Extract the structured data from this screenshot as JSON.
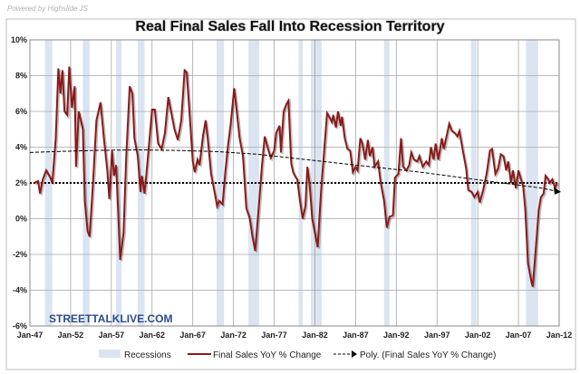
{
  "powered_by": "Powered by  Highslide JS",
  "watermark": "STREETTALKLIVE.COM",
  "colors": {
    "series": "#8b1a1a",
    "recession": "#dbe5f1",
    "trend": "#000000",
    "watermark": "#2b4c8c"
  },
  "chart_data": {
    "type": "line",
    "title": "Real Final Sales Fall Into Recession Territory",
    "xlabel": "",
    "ylabel": "",
    "ylim": [
      -6,
      10
    ],
    "xlim": [
      "1947-01",
      "2012-01"
    ],
    "grid": true,
    "legend_placement": "bottom",
    "y_ticks": [
      "10%",
      "8%",
      "6%",
      "4%",
      "2%",
      "0%",
      "-2%",
      "-4%",
      "-6%"
    ],
    "x_ticks": [
      "Jan-47",
      "Jan-52",
      "Jan-57",
      "Jan-62",
      "Jan-67",
      "Jan-72",
      "Jan-77",
      "Jan-82",
      "Jan-87",
      "Jan-92",
      "Jan-97",
      "Jan-02",
      "Jan-07",
      "Jan-12"
    ],
    "legend": [
      "Recessions",
      "Final Sales YoY % Change",
      "Poly. (Final Sales YoY % Change)"
    ],
    "reference_line": 2,
    "recessions": [
      [
        "1948-11",
        "1949-10"
      ],
      [
        "1953-07",
        "1954-05"
      ],
      [
        "1957-08",
        "1958-04"
      ],
      [
        "1960-04",
        "1961-02"
      ],
      [
        "1969-12",
        "1970-11"
      ],
      [
        "1973-11",
        "1975-03"
      ],
      [
        "1980-01",
        "1980-07"
      ],
      [
        "1981-07",
        "1982-11"
      ],
      [
        "1990-07",
        "1991-03"
      ],
      [
        "2001-03",
        "2001-11"
      ],
      [
        "2007-12",
        "2009-06"
      ]
    ],
    "series": [
      {
        "name": "Final Sales YoY % Change",
        "values": [
          [
            "1947-07",
            2.0
          ],
          [
            "1948-01",
            2.1
          ],
          [
            "1948-04",
            1.4
          ],
          [
            "1948-08",
            2.2
          ],
          [
            "1949-01",
            2.7
          ],
          [
            "1949-07",
            2.3
          ],
          [
            "1949-10",
            2.0
          ],
          [
            "1950-03",
            4.5
          ],
          [
            "1950-07",
            8.4
          ],
          [
            "1950-10",
            7.0
          ],
          [
            "1951-01",
            8.3
          ],
          [
            "1951-04",
            6.0
          ],
          [
            "1951-08",
            5.8
          ],
          [
            "1951-11",
            8.5
          ],
          [
            "1952-03",
            6.2
          ],
          [
            "1952-07",
            7.4
          ],
          [
            "1952-09",
            2.9
          ],
          [
            "1953-01",
            6.0
          ],
          [
            "1953-04",
            5.5
          ],
          [
            "1953-07",
            5.0
          ],
          [
            "1953-10",
            1.0
          ],
          [
            "1954-02",
            -0.7
          ],
          [
            "1954-05",
            -1.0
          ],
          [
            "1954-10",
            2.0
          ],
          [
            "1955-03",
            5.5
          ],
          [
            "1955-09",
            6.5
          ],
          [
            "1956-02",
            4.5
          ],
          [
            "1956-07",
            2.7
          ],
          [
            "1956-10",
            1.1
          ],
          [
            "1957-02",
            3.8
          ],
          [
            "1957-05",
            2.4
          ],
          [
            "1957-08",
            3.0
          ],
          [
            "1957-11",
            0.5
          ],
          [
            "1958-02",
            -2.3
          ],
          [
            "1958-07",
            -0.8
          ],
          [
            "1958-11",
            3.5
          ],
          [
            "1959-04",
            7.4
          ],
          [
            "1959-08",
            7.0
          ],
          [
            "1959-11",
            4.5
          ],
          [
            "1960-04",
            3.5
          ],
          [
            "1960-08",
            1.5
          ],
          [
            "1960-10",
            2.4
          ],
          [
            "1961-02",
            1.4
          ],
          [
            "1961-07",
            3.5
          ],
          [
            "1962-01",
            6.1
          ],
          [
            "1962-05",
            6.1
          ],
          [
            "1962-10",
            4.2
          ],
          [
            "1963-03",
            3.9
          ],
          [
            "1963-08",
            4.8
          ],
          [
            "1964-01",
            6.8
          ],
          [
            "1964-05",
            6.0
          ],
          [
            "1964-10",
            5.0
          ],
          [
            "1965-03",
            4.4
          ],
          [
            "1965-08",
            5.5
          ],
          [
            "1966-01",
            8.3
          ],
          [
            "1966-04",
            8.2
          ],
          [
            "1966-09",
            5.5
          ],
          [
            "1967-01",
            3.2
          ],
          [
            "1967-04",
            2.6
          ],
          [
            "1967-08",
            3.3
          ],
          [
            "1967-11",
            3.0
          ],
          [
            "1968-04",
            4.6
          ],
          [
            "1968-08",
            5.5
          ],
          [
            "1968-11",
            4.5
          ],
          [
            "1969-04",
            2.5
          ],
          [
            "1969-09",
            1.5
          ],
          [
            "1970-01",
            0.7
          ],
          [
            "1970-04",
            1.0
          ],
          [
            "1970-09",
            0.8
          ],
          [
            "1971-01",
            2.6
          ],
          [
            "1971-05",
            4.1
          ],
          [
            "1971-09",
            5.3
          ],
          [
            "1972-02",
            7.3
          ],
          [
            "1972-05",
            6.3
          ],
          [
            "1972-10",
            4.5
          ],
          [
            "1973-03",
            3.5
          ],
          [
            "1973-08",
            0.6
          ],
          [
            "1974-01",
            0.0
          ],
          [
            "1974-05",
            -1.0
          ],
          [
            "1974-09",
            -1.8
          ],
          [
            "1975-02",
            0.5
          ],
          [
            "1975-07",
            3.0
          ],
          [
            "1975-11",
            4.6
          ],
          [
            "1976-04",
            3.9
          ],
          [
            "1976-08",
            3.4
          ],
          [
            "1977-01",
            3.8
          ],
          [
            "1977-04",
            4.8
          ],
          [
            "1977-09",
            5.2
          ],
          [
            "1977-11",
            3.7
          ],
          [
            "1978-03",
            6.0
          ],
          [
            "1978-07",
            6.4
          ],
          [
            "1978-10",
            6.6
          ],
          [
            "1979-02",
            3.1
          ],
          [
            "1979-05",
            2.6
          ],
          [
            "1979-09",
            2.3
          ],
          [
            "1979-11",
            2.2
          ],
          [
            "1980-03",
            1.0
          ],
          [
            "1980-07",
            0.0
          ],
          [
            "1980-11",
            0.7
          ],
          [
            "1981-02",
            2.9
          ],
          [
            "1981-05",
            2.0
          ],
          [
            "1981-09",
            0.0
          ],
          [
            "1982-01",
            -0.8
          ],
          [
            "1982-05",
            -1.6
          ],
          [
            "1982-10",
            1.5
          ],
          [
            "1983-02",
            3.5
          ],
          [
            "1983-07",
            5.9
          ],
          [
            "1983-10",
            5.7
          ],
          [
            "1984-02",
            5.4
          ],
          [
            "1984-04",
            5.8
          ],
          [
            "1984-08",
            5.1
          ],
          [
            "1984-11",
            6.0
          ],
          [
            "1985-03",
            5.2
          ],
          [
            "1985-05",
            5.7
          ],
          [
            "1985-09",
            4.5
          ],
          [
            "1986-01",
            3.9
          ],
          [
            "1986-05",
            3.8
          ],
          [
            "1986-09",
            2.6
          ],
          [
            "1987-01",
            2.9
          ],
          [
            "1987-04",
            2.7
          ],
          [
            "1987-08",
            4.5
          ],
          [
            "1987-11",
            4.2
          ],
          [
            "1988-03",
            3.3
          ],
          [
            "1988-07",
            4.4
          ],
          [
            "1988-10",
            3.5
          ],
          [
            "1989-02",
            4.0
          ],
          [
            "1989-05",
            2.9
          ],
          [
            "1989-10",
            3.2
          ],
          [
            "1990-02",
            2.0
          ],
          [
            "1990-07",
            1.0
          ],
          [
            "1990-11",
            -0.5
          ],
          [
            "1991-03",
            0.1
          ],
          [
            "1991-08",
            0.2
          ],
          [
            "1991-11",
            2.3
          ],
          [
            "1992-04",
            2.5
          ],
          [
            "1992-08",
            4.5
          ],
          [
            "1992-11",
            2.9
          ],
          [
            "1993-04",
            2.7
          ],
          [
            "1993-08",
            3.0
          ],
          [
            "1993-11",
            3.7
          ],
          [
            "1994-03",
            3.3
          ],
          [
            "1994-08",
            3.2
          ],
          [
            "1994-11",
            3.5
          ],
          [
            "1995-04",
            2.9
          ],
          [
            "1995-09",
            3.2
          ],
          [
            "1996-01",
            3.0
          ],
          [
            "1996-04",
            4.0
          ],
          [
            "1996-08",
            3.3
          ],
          [
            "1996-11",
            4.2
          ],
          [
            "1997-03",
            3.3
          ],
          [
            "1997-08",
            4.5
          ],
          [
            "1997-11",
            3.9
          ],
          [
            "1998-03",
            4.6
          ],
          [
            "1998-07",
            5.3
          ],
          [
            "1998-11",
            4.9
          ],
          [
            "1999-03",
            4.8
          ],
          [
            "1999-07",
            4.6
          ],
          [
            "1999-10",
            4.9
          ],
          [
            "2000-03",
            3.8
          ],
          [
            "2000-08",
            2.8
          ],
          [
            "2000-11",
            1.6
          ],
          [
            "2001-04",
            1.5
          ],
          [
            "2001-08",
            1.2
          ],
          [
            "2002-01",
            1.5
          ],
          [
            "2002-04",
            0.9
          ],
          [
            "2002-09",
            1.6
          ],
          [
            "2003-02",
            2.5
          ],
          [
            "2003-07",
            3.8
          ],
          [
            "2003-10",
            3.9
          ],
          [
            "2004-03",
            2.5
          ],
          [
            "2004-07",
            2.8
          ],
          [
            "2004-11",
            3.6
          ],
          [
            "2005-03",
            3.5
          ],
          [
            "2005-07",
            2.7
          ],
          [
            "2005-10",
            3.2
          ],
          [
            "2006-02",
            2.0
          ],
          [
            "2006-05",
            2.7
          ],
          [
            "2006-09",
            1.7
          ],
          [
            "2007-01",
            2.7
          ],
          [
            "2007-04",
            2.3
          ],
          [
            "2007-08",
            1.8
          ],
          [
            "2007-11",
            0.5
          ],
          [
            "2008-03",
            -2.5
          ],
          [
            "2008-08",
            -3.5
          ],
          [
            "2008-10",
            -3.8
          ],
          [
            "2009-03",
            -1.5
          ],
          [
            "2009-07",
            0.5
          ],
          [
            "2009-10",
            1.2
          ],
          [
            "2010-02",
            1.4
          ],
          [
            "2010-05",
            2.4
          ],
          [
            "2010-09",
            2.2
          ],
          [
            "2010-11",
            2.0
          ],
          [
            "2011-03",
            2.2
          ],
          [
            "2011-07",
            1.7
          ],
          [
            "2011-10",
            2.0
          ]
        ]
      },
      {
        "name": "Poly. (Final Sales YoY % Change)",
        "values": [
          [
            "1947-01",
            3.7
          ],
          [
            "1950-01",
            3.75
          ],
          [
            "1955-01",
            3.82
          ],
          [
            "1960-01",
            3.85
          ],
          [
            "1965-01",
            3.82
          ],
          [
            "1970-01",
            3.75
          ],
          [
            "1975-01",
            3.6
          ],
          [
            "1980-01",
            3.35
          ],
          [
            "1985-01",
            3.1
          ],
          [
            "1990-01",
            2.85
          ],
          [
            "1995-01",
            2.6
          ],
          [
            "2000-01",
            2.3
          ],
          [
            "2005-01",
            2.0
          ],
          [
            "2010-01",
            1.7
          ],
          [
            "2012-01",
            1.5
          ]
        ]
      }
    ]
  }
}
